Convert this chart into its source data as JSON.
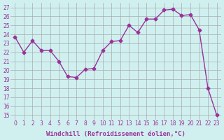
{
  "x": [
    0,
    1,
    2,
    3,
    4,
    5,
    6,
    7,
    8,
    9,
    10,
    11,
    12,
    13,
    14,
    15,
    16,
    17,
    18,
    19,
    20,
    21,
    22,
    23
  ],
  "y": [
    23.7,
    22.0,
    23.3,
    22.2,
    22.2,
    21.0,
    19.3,
    19.2,
    20.1,
    20.2,
    22.2,
    23.2,
    23.3,
    25.0,
    24.2,
    25.7,
    25.7,
    26.7,
    26.8,
    26.1,
    26.2,
    24.5,
    18.0,
    15.0
  ],
  "line_color": "#993399",
  "marker_color": "#993399",
  "bg_color": "#d0f0f0",
  "grid_color": "#aaaaaa",
  "xlabel": "Windchill (Refroidissement éolien,°C)",
  "xlabel_color": "#993399",
  "yticks": [
    15,
    16,
    17,
    18,
    19,
    20,
    21,
    22,
    23,
    24,
    25,
    26,
    27
  ],
  "xticks": [
    0,
    1,
    2,
    3,
    4,
    5,
    6,
    7,
    8,
    9,
    10,
    11,
    12,
    13,
    14,
    15,
    16,
    17,
    18,
    19,
    20,
    21,
    22,
    23
  ],
  "ylim": [
    14.5,
    27.5
  ],
  "xlim": [
    -0.5,
    23.5
  ]
}
